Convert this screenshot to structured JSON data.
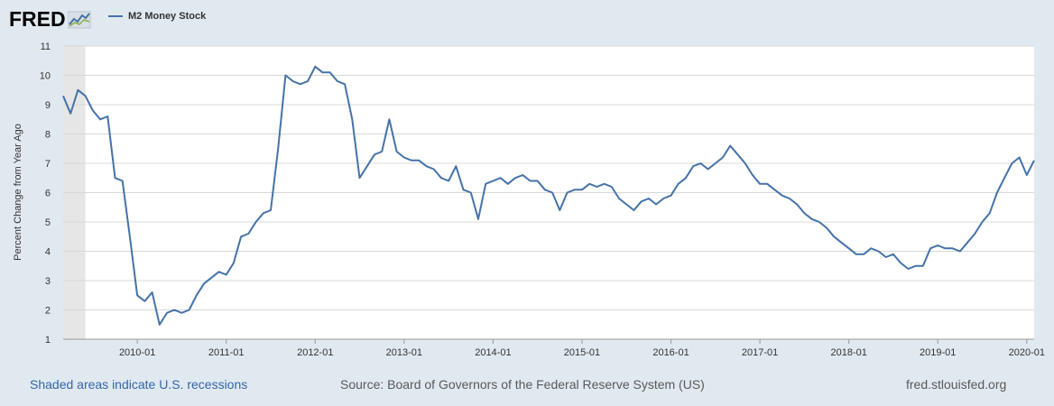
{
  "header": {
    "logo_text": "FRED",
    "logo_icon": "fred-sparkline-icon"
  },
  "colors": {
    "line": "#4572a7",
    "plot_bg": "#ffffff",
    "page_bg": "#e1e9f0",
    "recession": "#e6e6e6",
    "grid": "#d8d8d8"
  },
  "footer": {
    "note": "Shaded areas indicate U.S. recessions",
    "source": "Source: Board of Governors of the Federal Reserve System (US)",
    "site": "fred.stlouisfed.org"
  },
  "chart_data": {
    "type": "line",
    "title": "",
    "xlabel": "",
    "ylabel": "Percent Change from Year Ago",
    "ylim": [
      1,
      11
    ],
    "yticks": [
      1,
      2,
      3,
      4,
      5,
      6,
      7,
      8,
      9,
      10,
      11
    ],
    "xlim": [
      "2009-03",
      "2020-02"
    ],
    "xticks": [
      "2010-01",
      "2011-01",
      "2012-01",
      "2013-01",
      "2014-01",
      "2015-01",
      "2016-01",
      "2017-01",
      "2018-01",
      "2019-01",
      "2020-01"
    ],
    "grid": true,
    "legend": "top-left",
    "recession": [
      "2009-03",
      "2009-06"
    ],
    "series": [
      {
        "name": "M2 Money Stock",
        "x": [
          "2009-03",
          "2009-04",
          "2009-05",
          "2009-06",
          "2009-07",
          "2009-08",
          "2009-09",
          "2009-10",
          "2009-11",
          "2009-12",
          "2010-01",
          "2010-02",
          "2010-03",
          "2010-04",
          "2010-05",
          "2010-06",
          "2010-07",
          "2010-08",
          "2010-09",
          "2010-10",
          "2010-11",
          "2010-12",
          "2011-01",
          "2011-02",
          "2011-03",
          "2011-04",
          "2011-05",
          "2011-06",
          "2011-07",
          "2011-08",
          "2011-09",
          "2011-10",
          "2011-11",
          "2011-12",
          "2012-01",
          "2012-02",
          "2012-03",
          "2012-04",
          "2012-05",
          "2012-06",
          "2012-07",
          "2012-08",
          "2012-09",
          "2012-10",
          "2012-11",
          "2012-12",
          "2013-01",
          "2013-02",
          "2013-03",
          "2013-04",
          "2013-05",
          "2013-06",
          "2013-07",
          "2013-08",
          "2013-09",
          "2013-10",
          "2013-11",
          "2013-12",
          "2014-01",
          "2014-02",
          "2014-03",
          "2014-04",
          "2014-05",
          "2014-06",
          "2014-07",
          "2014-08",
          "2014-09",
          "2014-10",
          "2014-11",
          "2014-12",
          "2015-01",
          "2015-02",
          "2015-03",
          "2015-04",
          "2015-05",
          "2015-06",
          "2015-07",
          "2015-08",
          "2015-09",
          "2015-10",
          "2015-11",
          "2015-12",
          "2016-01",
          "2016-02",
          "2016-03",
          "2016-04",
          "2016-05",
          "2016-06",
          "2016-07",
          "2016-08",
          "2016-09",
          "2016-10",
          "2016-11",
          "2016-12",
          "2017-01",
          "2017-02",
          "2017-03",
          "2017-04",
          "2017-05",
          "2017-06",
          "2017-07",
          "2017-08",
          "2017-09",
          "2017-10",
          "2017-11",
          "2017-12",
          "2018-01",
          "2018-02",
          "2018-03",
          "2018-04",
          "2018-05",
          "2018-06",
          "2018-07",
          "2018-08",
          "2018-09",
          "2018-10",
          "2018-11",
          "2018-12",
          "2019-01",
          "2019-02",
          "2019-03",
          "2019-04",
          "2019-05",
          "2019-06",
          "2019-07",
          "2019-08",
          "2019-09",
          "2019-10",
          "2019-11",
          "2019-12",
          "2020-01",
          "2020-02"
        ],
        "values": [
          9.3,
          8.7,
          9.5,
          9.3,
          8.8,
          8.5,
          8.6,
          6.5,
          6.4,
          4.5,
          2.5,
          2.3,
          2.6,
          1.5,
          1.9,
          2.0,
          1.9,
          2.0,
          2.5,
          2.9,
          3.1,
          3.3,
          3.2,
          3.6,
          4.5,
          4.6,
          5.0,
          5.3,
          5.4,
          7.5,
          10.0,
          9.8,
          9.7,
          9.8,
          10.3,
          10.1,
          10.1,
          9.8,
          9.7,
          8.5,
          6.5,
          6.9,
          7.3,
          7.4,
          8.5,
          7.4,
          7.2,
          7.1,
          7.1,
          6.9,
          6.8,
          6.5,
          6.4,
          6.9,
          6.1,
          6.0,
          5.1,
          6.3,
          6.4,
          6.5,
          6.3,
          6.5,
          6.6,
          6.4,
          6.4,
          6.1,
          6.0,
          5.4,
          6.0,
          6.1,
          6.1,
          6.3,
          6.2,
          6.3,
          6.2,
          5.8,
          5.6,
          5.4,
          5.7,
          5.8,
          5.6,
          5.8,
          5.9,
          6.3,
          6.5,
          6.9,
          7.0,
          6.8,
          7.0,
          7.2,
          7.6,
          7.3,
          7.0,
          6.6,
          6.3,
          6.3,
          6.1,
          5.9,
          5.8,
          5.6,
          5.3,
          5.1,
          5.0,
          4.8,
          4.5,
          4.3,
          4.1,
          3.9,
          3.9,
          4.1,
          4.0,
          3.8,
          3.9,
          3.6,
          3.4,
          3.5,
          3.5,
          4.1,
          4.2,
          4.1,
          4.1,
          4.0,
          4.3,
          4.6,
          5.0,
          5.3,
          6.0,
          6.5,
          7.0,
          7.2,
          6.6,
          7.1
        ]
      }
    ]
  }
}
